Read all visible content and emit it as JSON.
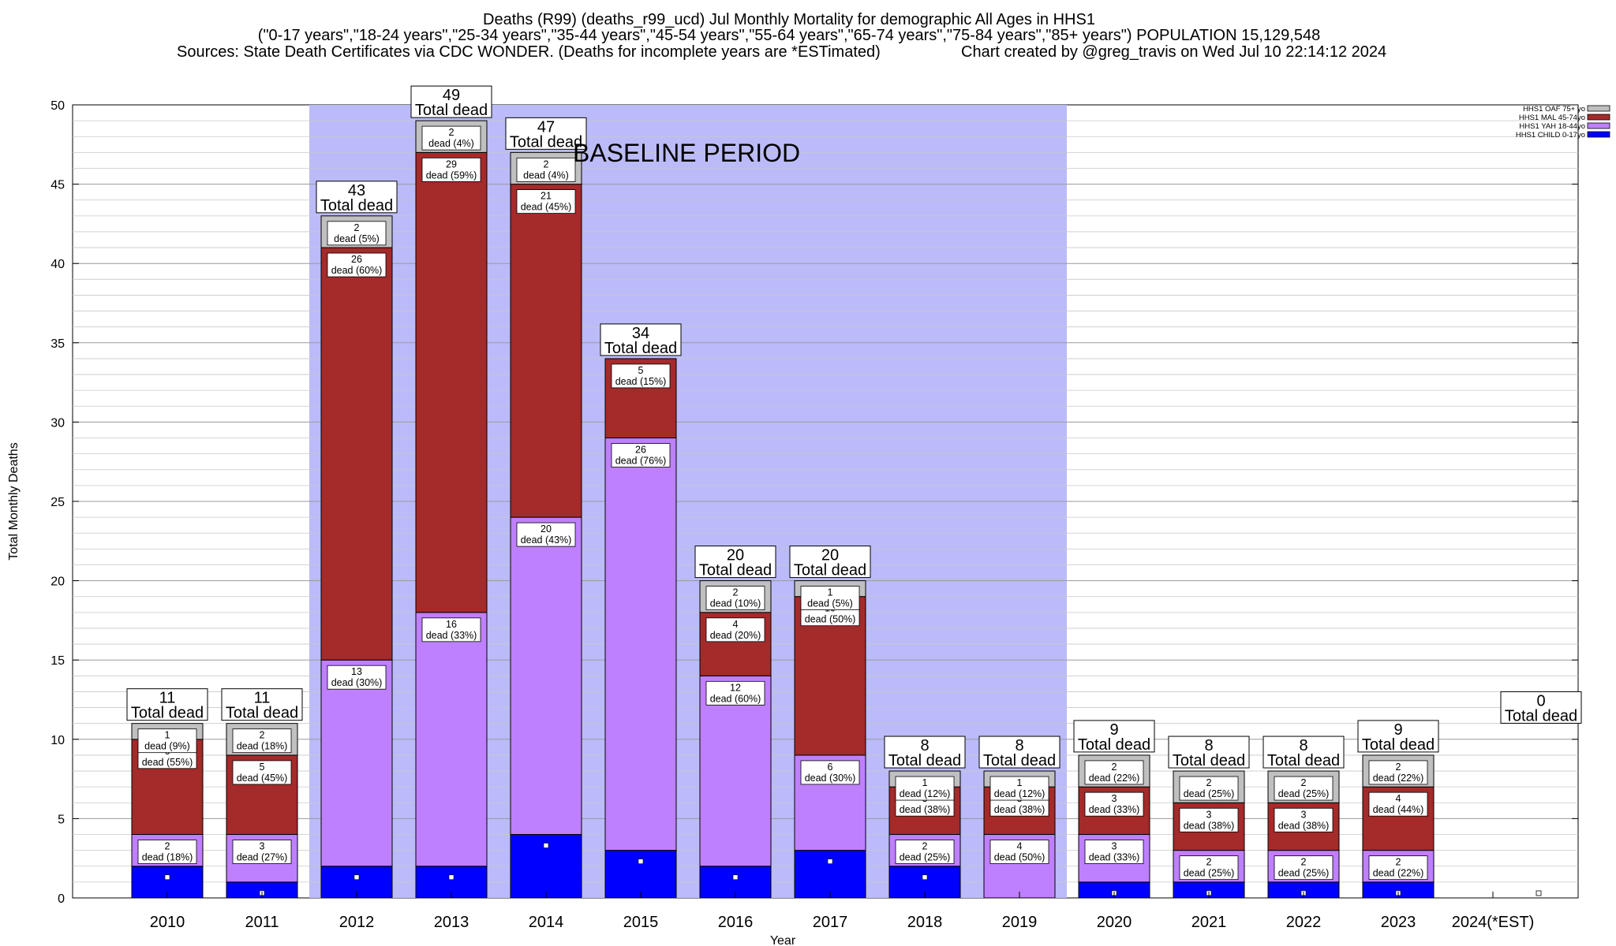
{
  "title_lines": [
    "Deaths (R99) (deaths_r99_ucd) Jul Monthly Mortality for demographic All Ages in HHS1",
    "(\"0-17 years\",\"18-24 years\",\"25-34 years\",\"35-44 years\",\"45-54 years\",\"55-64 years\",\"65-74 years\",\"75-84 years\",\"85+ years\") POPULATION 15,129,548",
    "Sources: State Death Certificates via CDC WONDER. (Deaths for incomplete years are *ESTimated)",
    "Chart created by @greg_travis on Wed Jul 10 22:14:12 2024"
  ],
  "chart_data": {
    "type": "bar",
    "stacked": true,
    "xlabel": "Year",
    "ylabel": "Total Monthly Deaths",
    "ylim": [
      0,
      50
    ],
    "yticks": [
      0,
      5,
      10,
      15,
      20,
      25,
      30,
      35,
      40,
      45,
      50
    ],
    "grid": true,
    "legend_position": "top-right",
    "baseline_label": "BASELINE PERIOD",
    "baseline_categories": [
      "2012",
      "2013",
      "2014",
      "2015",
      "2016",
      "2017",
      "2018",
      "2019"
    ],
    "categories": [
      "2010",
      "2011",
      "2012",
      "2013",
      "2014",
      "2015",
      "2016",
      "2017",
      "2018",
      "2019",
      "2020",
      "2021",
      "2022",
      "2023",
      "2024(*EST)"
    ],
    "series": [
      {
        "name": "HHS1 CHILD 0-17yo",
        "color": "#0000ff",
        "values": [
          2,
          1,
          2,
          2,
          4,
          3,
          2,
          3,
          2,
          0,
          1,
          1,
          1,
          1,
          0
        ]
      },
      {
        "name": "HHS1 YAH 18-44yo",
        "color": "#bf80ff",
        "values": [
          2,
          3,
          13,
          16,
          20,
          26,
          12,
          6,
          2,
          4,
          3,
          2,
          2,
          2,
          0
        ]
      },
      {
        "name": "HHS1 MAL 45-74yo",
        "color": "#a52a2a",
        "values": [
          6,
          5,
          26,
          29,
          21,
          5,
          4,
          10,
          3,
          3,
          3,
          3,
          3,
          4,
          0
        ]
      },
      {
        "name": "HHS1 OAF 75+ yo",
        "color": "#c0c0c0",
        "values": [
          1,
          2,
          2,
          2,
          2,
          0,
          2,
          1,
          1,
          1,
          2,
          2,
          2,
          2,
          0
        ]
      }
    ],
    "segment_labels": [
      [
        "",
        "",
        "",
        "",
        "",
        "",
        "",
        "",
        "",
        "",
        "",
        "",
        "",
        "",
        ""
      ],
      [
        "dead (18%)",
        "dead (27%)",
        "dead (30%)",
        "dead (33%)",
        "dead (43%)",
        "dead (76%)",
        "dead (60%)",
        "dead (30%)",
        "dead (25%)",
        "dead (50%)",
        "dead (33%)",
        "dead (25%)",
        "dead (25%)",
        "dead (22%)",
        ""
      ],
      [
        "dead (55%)",
        "dead (45%)",
        "dead (60%)",
        "dead (59%)",
        "dead (45%)",
        "dead (15%)",
        "dead (20%)",
        "dead (50%)",
        "dead (38%)",
        "dead (38%)",
        "dead (33%)",
        "dead (38%)",
        "dead (38%)",
        "dead (44%)",
        ""
      ],
      [
        "dead (9%)",
        "dead (18%)",
        "dead (5%)",
        "dead (4%)",
        "dead (4%)",
        "",
        "dead (10%)",
        "dead (5%)",
        "dead (12%)",
        "dead (12%)",
        "dead (22%)",
        "dead (25%)",
        "dead (25%)",
        "dead (22%)",
        ""
      ]
    ],
    "totals": [
      11,
      11,
      43,
      49,
      47,
      34,
      20,
      20,
      8,
      8,
      9,
      8,
      8,
      9,
      0
    ],
    "total_suffix": "Total dead"
  }
}
